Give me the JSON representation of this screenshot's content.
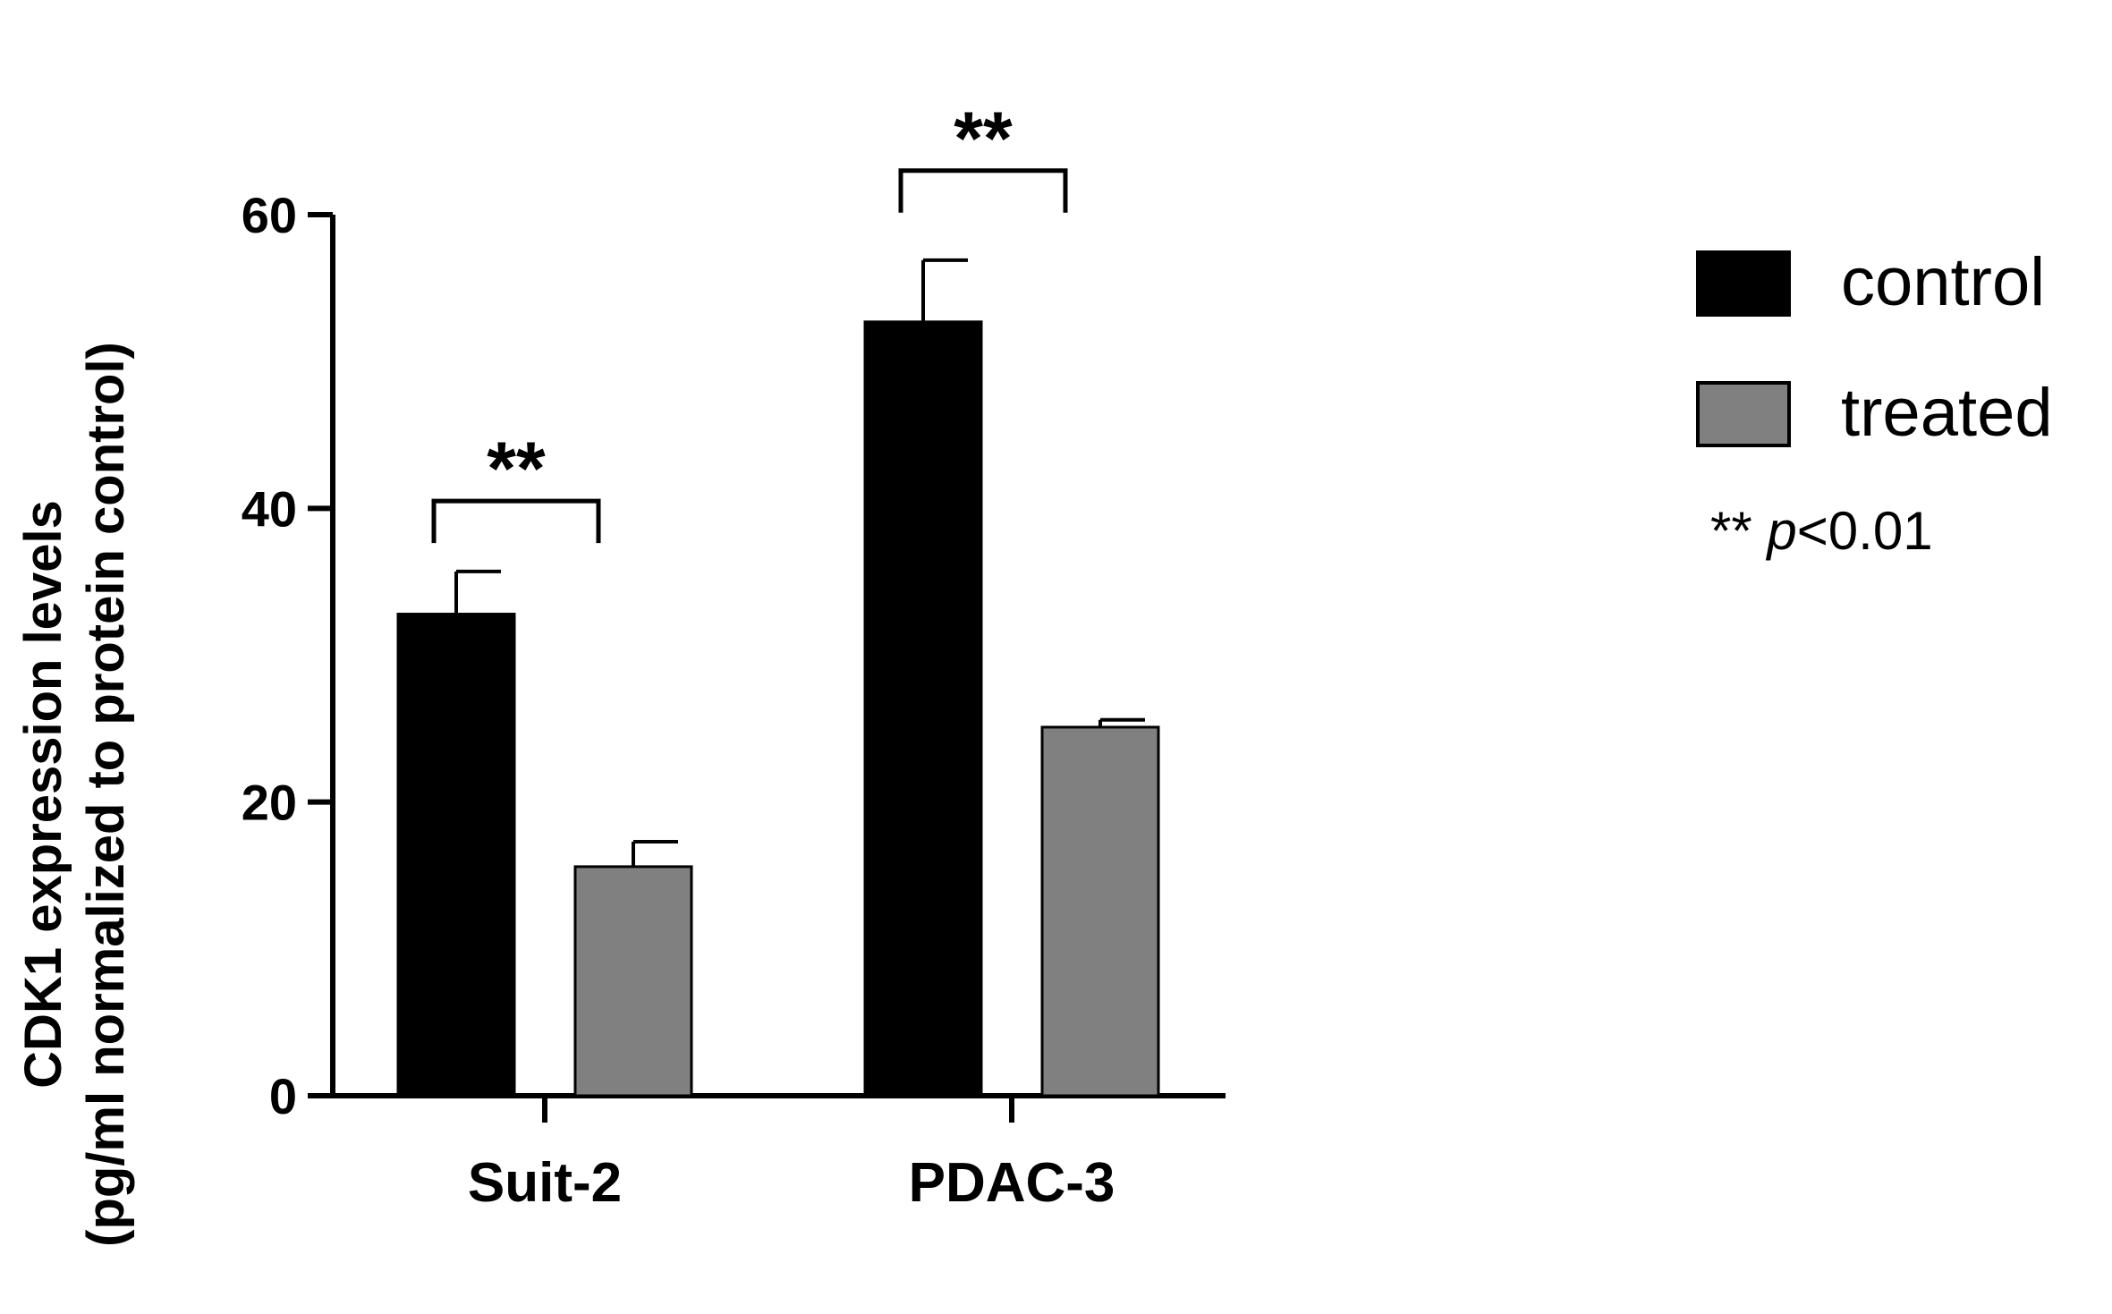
{
  "chart_data": {
    "type": "bar",
    "title": "",
    "xlabel": "",
    "ylabel_line1": "CDK1 expression levels",
    "ylabel_line2": "(pg/ml normalized to protein control)",
    "ylim": [
      0,
      60
    ],
    "yticks": [
      0,
      20,
      40,
      60
    ],
    "categories": [
      "Suit-2",
      "PDAC-3"
    ],
    "series": [
      {
        "name": "control",
        "values": [
          32.8,
          52.7
        ],
        "errors": [
          2.9,
          4.2
        ],
        "color": "#000000"
      },
      {
        "name": "treated",
        "values": [
          15.6,
          25.1
        ],
        "errors": [
          1.7,
          0.5
        ],
        "color": "#808080"
      }
    ],
    "significance": [
      {
        "category": "Suit-2",
        "label": "**",
        "bracket_y": 40.5,
        "text_y": 44
      },
      {
        "category": "PDAC-3",
        "label": "**",
        "bracket_y": 63,
        "text_y": 66.5
      }
    ],
    "legend_position": "right",
    "legend_note": {
      "stars": "**",
      "p": "p",
      "rest": "<0.01"
    }
  }
}
